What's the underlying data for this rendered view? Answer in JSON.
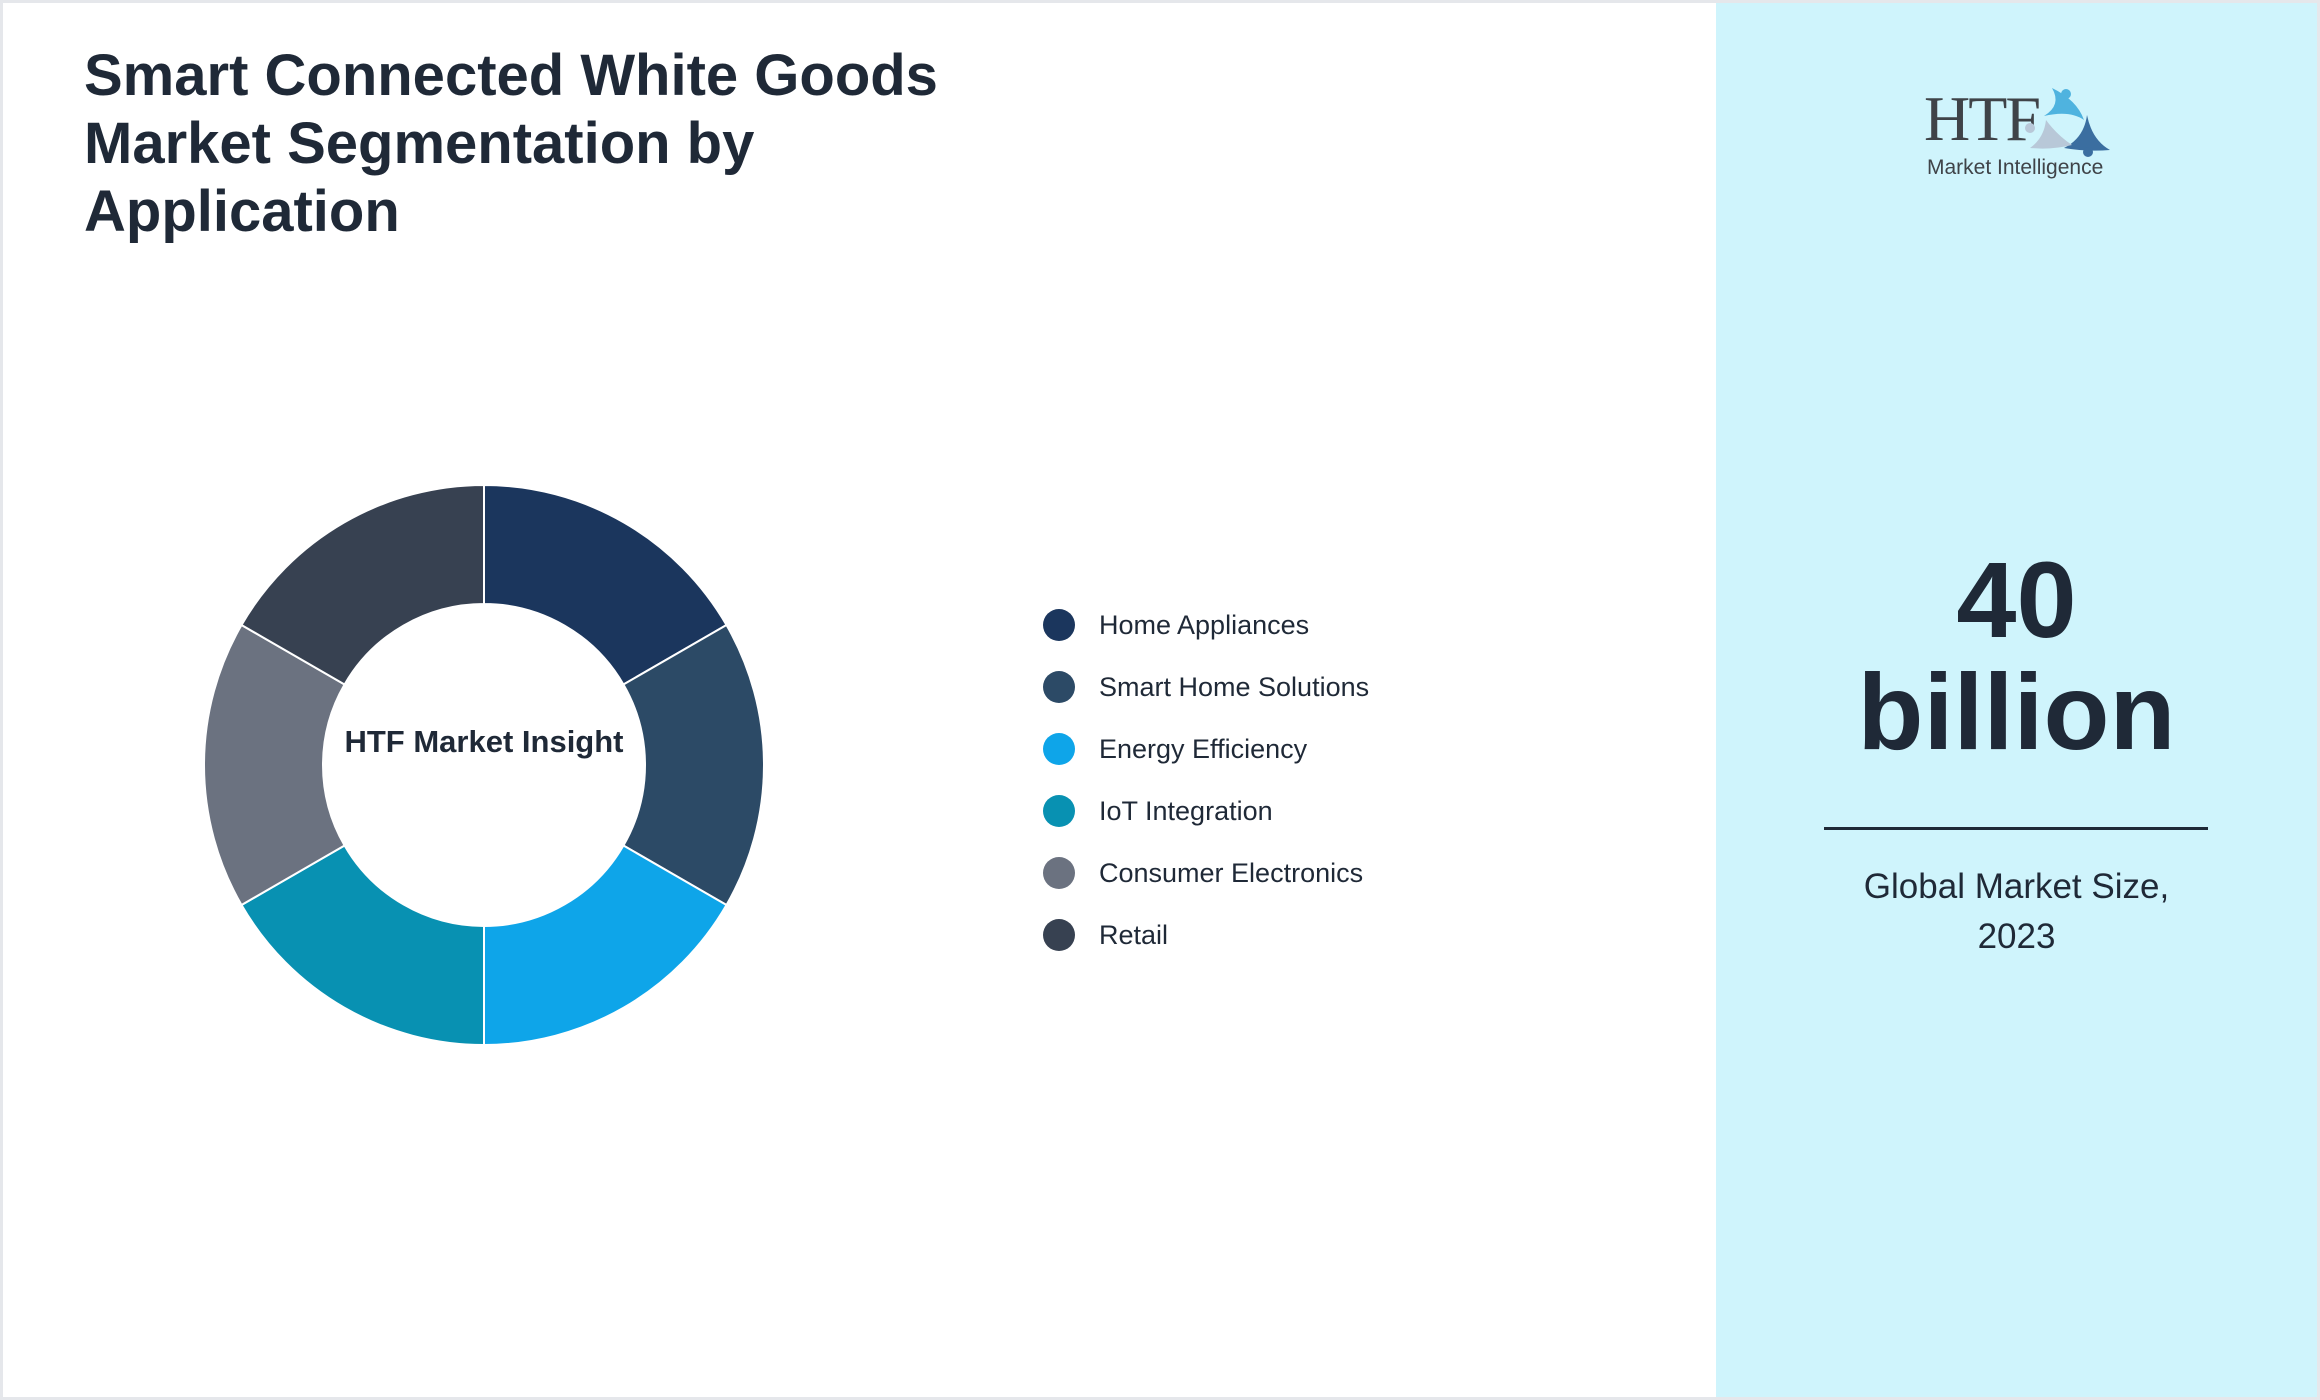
{
  "title": "Smart Connected White Goods Market Segmentation by Application",
  "center_label": "HTF Market Insight",
  "logo": {
    "text": "HTF",
    "subtext": "Market Intelligence"
  },
  "market_size": {
    "value": "40",
    "unit": "billion",
    "caption": "Global Market Size, 2023"
  },
  "chart_data": {
    "type": "pie",
    "variant": "donut",
    "title": "Smart Connected White Goods Market Segmentation by Application",
    "categories": [
      "Home Appliances",
      "Smart Home Solutions",
      "Energy Efficiency",
      "IoT Integration",
      "Consumer Electronics",
      "Retail"
    ],
    "values": [
      1,
      1,
      1,
      1,
      1,
      1
    ],
    "colors": [
      "#1b365d",
      "#2c4a66",
      "#0ea5e9",
      "#0891b2",
      "#6b7280",
      "#374151"
    ],
    "legend_position": "right"
  }
}
